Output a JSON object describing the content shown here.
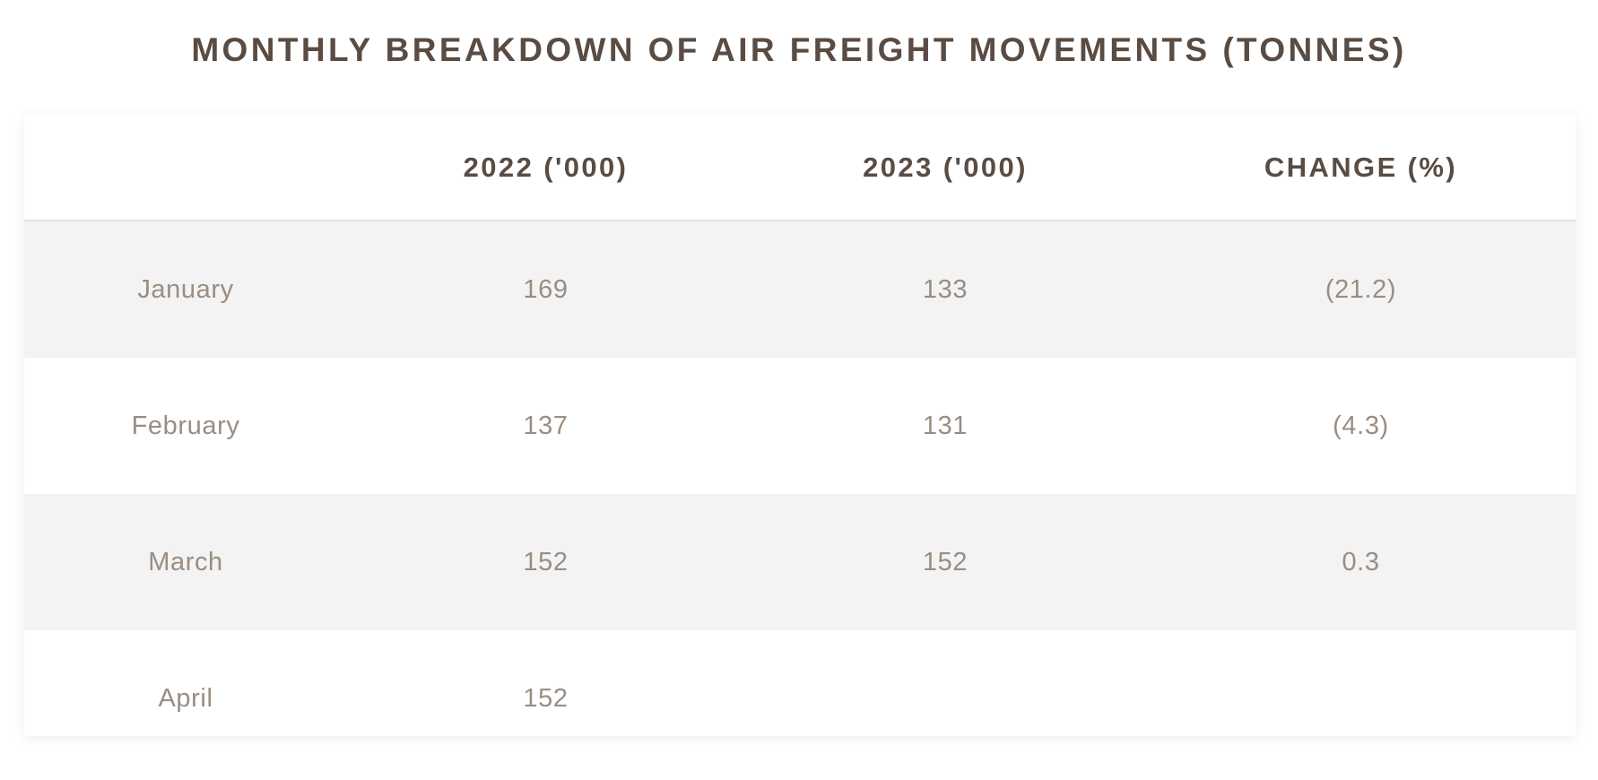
{
  "title": "MONTHLY BREAKDOWN OF AIR FREIGHT MOVEMENTS (TONNES)",
  "table": {
    "headers": [
      "",
      "2022 ('000)",
      "2023 ('000)",
      "CHANGE (%)"
    ],
    "rows": [
      {
        "month": "January",
        "y2022": "169",
        "y2023": "133",
        "change": "(21.2)"
      },
      {
        "month": "February",
        "y2022": "137",
        "y2023": "131",
        "change": "(4.3)"
      },
      {
        "month": "March",
        "y2022": "152",
        "y2023": "152",
        "change": "0.3"
      },
      {
        "month": "April",
        "y2022": "152",
        "y2023": "",
        "change": ""
      }
    ]
  },
  "colors": {
    "heading_text": "#5a4c42",
    "body_text": "#9a8d82",
    "stripe": "#f3f3f3",
    "background": "#ffffff"
  }
}
